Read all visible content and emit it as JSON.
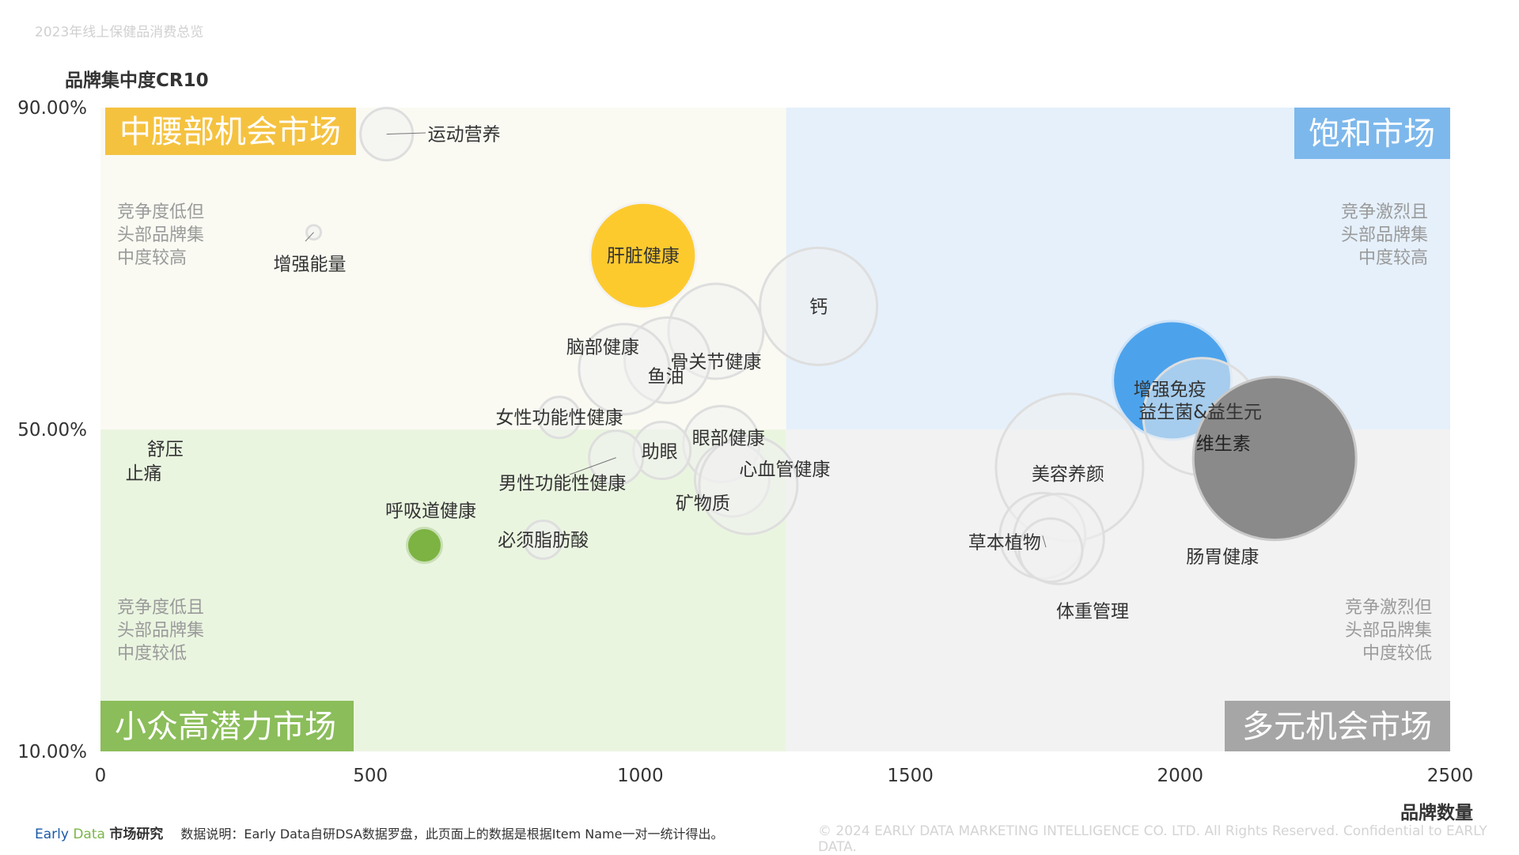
{
  "page_title": "2023年线上保健品消费总览",
  "footer": {
    "brand_part1": "Early",
    "brand_part2": "Data",
    "brand_part3": "市场研究",
    "note": "数据说明：Early Data自研DSA数据罗盘，此页面上的数据是根据Item Name一对一统计得出。",
    "copyright": "© 2024 EARLY DATA MARKETING INTELLIGENCE CO. LTD. All Rights Reserved. Confidential to EARLY DATA."
  },
  "chart_data": {
    "type": "scatter",
    "title": "",
    "xlabel": "品牌数量",
    "ylabel": "品牌集中度CR10",
    "xlim": [
      0,
      2500
    ],
    "ylim": [
      10,
      90
    ],
    "x_ticks": [
      "0",
      "500",
      "1000",
      "1500",
      "2000",
      "2500"
    ],
    "y_ticks": [
      "10.00%",
      "50.00%",
      "90.00%"
    ],
    "grid": false,
    "divider": {
      "x": 1270,
      "y": 50
    },
    "quadrants": [
      {
        "name": "中腰部机会市场",
        "desc": [
          "竞争度低但",
          "头部品牌集",
          "中度较高"
        ],
        "fill": "#fafaf3",
        "tag": "#f5c240"
      },
      {
        "name": "饱和市场",
        "desc": [
          "竞争激烈且",
          "头部品牌集",
          "中度较高"
        ],
        "fill": "#e5f0fb",
        "tag": "#7db8ec"
      },
      {
        "name": "小众高潜力市场",
        "desc": [
          "竞争度低且",
          "头部品牌集",
          "中度较低"
        ],
        "fill": "#eaf5e0",
        "tag": "#8bbd5a"
      },
      {
        "name": "多元机会市场",
        "desc": [
          "竞争激烈但",
          "头部品牌集",
          "中度较低"
        ],
        "fill": "#f2f2f2",
        "tag": "#a6a6a6"
      }
    ],
    "colors": {
      "default": "#f0f0f0",
      "highlight_orange": "#fdca2e",
      "highlight_blue": "#4ca3ec",
      "highlight_gray": "#8a8a8a",
      "highlight_green": "#7cb342"
    },
    "series": [
      {
        "name": "运动营养",
        "x": 530,
        "y": 86.7,
        "size": 33,
        "color": "default"
      },
      {
        "name": "增强能量",
        "x": 395,
        "y": 74.5,
        "size": 9,
        "color": "default"
      },
      {
        "name": "肝脏健康",
        "x": 1005,
        "y": 71.6,
        "size": 67,
        "color": "highlight_orange"
      },
      {
        "name": "钙",
        "x": 1330,
        "y": 65.3,
        "size": 74,
        "color": "default"
      },
      {
        "name": "骨关节健康",
        "x": 1140,
        "y": 62.2,
        "size": 60,
        "color": "default"
      },
      {
        "name": "鱼油",
        "x": 1050,
        "y": 58.6,
        "size": 54,
        "color": "default"
      },
      {
        "name": "脑部健康",
        "x": 970,
        "y": 57.5,
        "size": 57,
        "color": "default"
      },
      {
        "name": "女性功能性健康",
        "x": 850,
        "y": 51.5,
        "size": 26,
        "color": "default"
      },
      {
        "name": "眼部健康",
        "x": 1150,
        "y": 48.2,
        "size": 48,
        "color": "default"
      },
      {
        "name": "助眼",
        "x": 1040,
        "y": 47.4,
        "size": 36,
        "color": "default"
      },
      {
        "name": "男性功能性健康",
        "x": 955,
        "y": 46.5,
        "size": 34,
        "color": "default"
      },
      {
        "name": "矿物质",
        "x": 1170,
        "y": 43.8,
        "size": 47,
        "color": "default"
      },
      {
        "name": "心血管健康",
        "x": 1200,
        "y": 43.1,
        "size": 62,
        "color": "default"
      },
      {
        "name": "必须脂肪酸",
        "x": 820,
        "y": 36.3,
        "size": 24,
        "color": "default"
      },
      {
        "name": "呼吸道健康",
        "x": 600,
        "y": 35.6,
        "size": 22,
        "color": "highlight_green"
      },
      {
        "name": "舒压",
        "x": 120,
        "y": 47.6,
        "size": 1,
        "color": "default"
      },
      {
        "name": "止痛",
        "x": 80,
        "y": 44.6,
        "size": 1,
        "color": "default"
      },
      {
        "name": "增强免疫",
        "x": 1985,
        "y": 56.1,
        "size": 75,
        "color": "highlight_blue"
      },
      {
        "name": "益生菌&益生元",
        "x": 2040,
        "y": 51.6,
        "size": 74,
        "color": "default"
      },
      {
        "name": "维生素",
        "x": 2175,
        "y": 46.4,
        "size": 103,
        "color": "highlight_gray"
      },
      {
        "name": "美容养颜",
        "x": 1795,
        "y": 45.3,
        "size": 93,
        "color": "default"
      },
      {
        "name": "草本植物",
        "x": 1745,
        "y": 36.8,
        "size": 54,
        "color": "default"
      },
      {
        "name": "肠胃健康",
        "x": 1775,
        "y": 36.4,
        "size": 57,
        "color": "default"
      },
      {
        "name": "体重管理",
        "x": 1760,
        "y": 35.0,
        "size": 40,
        "color": "default"
      }
    ]
  }
}
